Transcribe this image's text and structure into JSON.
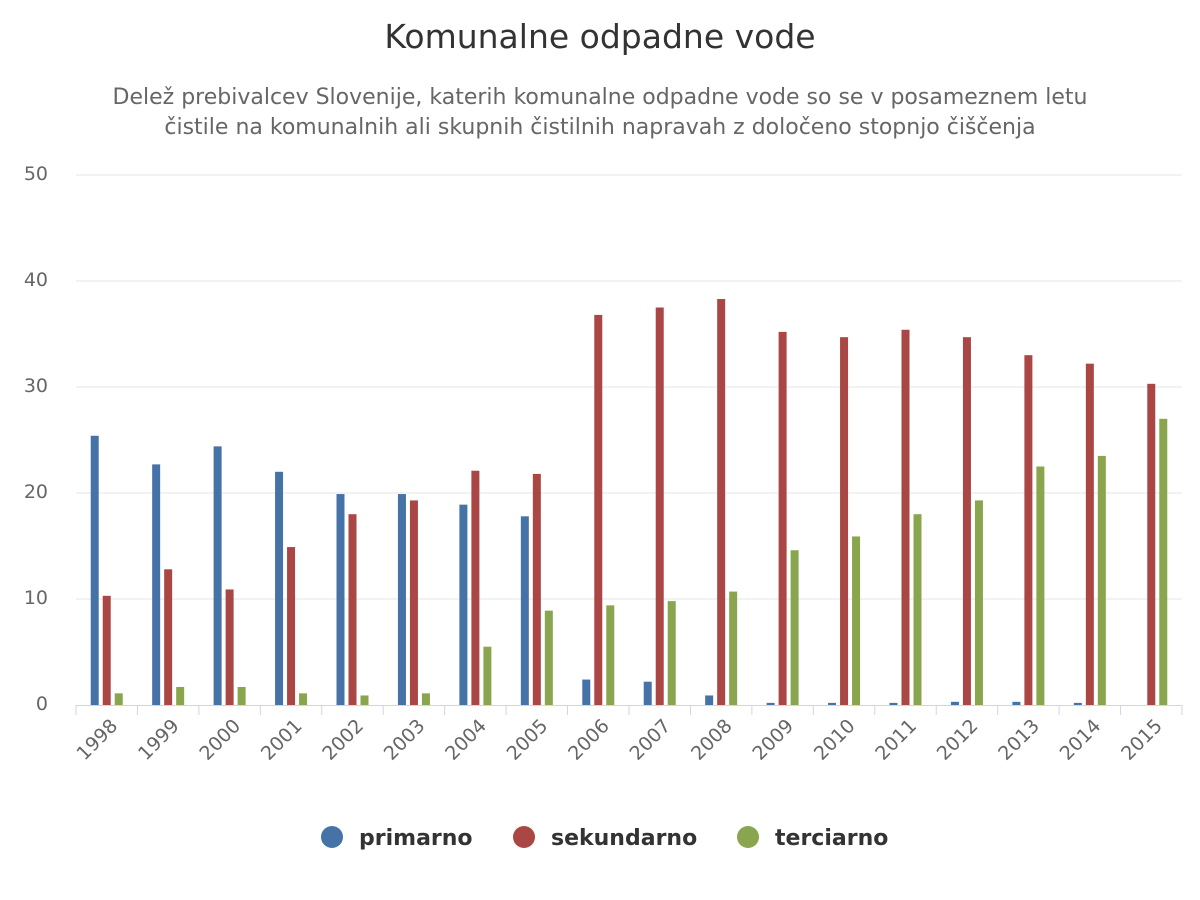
{
  "chart_data": {
    "type": "bar",
    "title": "Komunalne odpadne vode",
    "subtitle_lines": [
      "Delež prebivalcev Slovenije, katerih komunalne odpadne vode so se v posameznem letu",
      "čistile na komunalnih ali skupnih čistilnih napravah z določeno stopnjo čiščenja"
    ],
    "xlabel": "",
    "ylabel": "",
    "ylim": [
      0,
      50
    ],
    "yticks": [
      0,
      10,
      20,
      30,
      40,
      50
    ],
    "grid": true,
    "legend_position": "bottom-center",
    "categories": [
      "1998",
      "1999",
      "2000",
      "2001",
      "2002",
      "2003",
      "2004",
      "2005",
      "2006",
      "2007",
      "2008",
      "2009",
      "2010",
      "2011",
      "2012",
      "2013",
      "2014",
      "2015"
    ],
    "series": [
      {
        "name": "primarno",
        "color": "#4572a7",
        "values": [
          25.4,
          22.7,
          24.4,
          22.0,
          19.9,
          19.9,
          18.9,
          17.8,
          2.4,
          2.2,
          0.9,
          0.2,
          0.2,
          0.2,
          0.3,
          0.3,
          0.2,
          0.0
        ]
      },
      {
        "name": "sekundarno",
        "color": "#aa4643",
        "values": [
          10.3,
          12.8,
          10.9,
          14.9,
          18.0,
          19.3,
          22.1,
          21.8,
          36.8,
          37.5,
          38.3,
          35.2,
          34.7,
          35.4,
          34.7,
          33.0,
          32.2,
          30.3
        ]
      },
      {
        "name": "terciarno",
        "color": "#89a54e",
        "values": [
          1.1,
          1.7,
          1.7,
          1.1,
          0.9,
          1.1,
          5.5,
          8.9,
          9.4,
          9.8,
          10.7,
          14.6,
          15.9,
          18.0,
          19.3,
          22.5,
          23.5,
          27.0
        ]
      }
    ]
  }
}
